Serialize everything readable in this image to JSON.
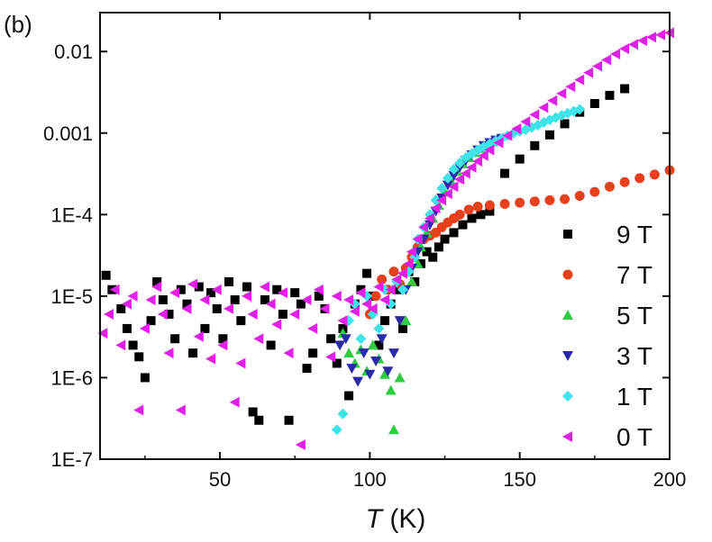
{
  "chart_data": {
    "type": "scatter",
    "panel_label": "(b)",
    "xlabel_var": "T",
    "xlabel_unit": " (K)",
    "ylabel": "",
    "xlim": [
      10,
      200
    ],
    "ylim": [
      1e-07,
      0.03
    ],
    "y_scale": "log",
    "grid": false,
    "legend_position": "right",
    "x_ticks": [
      50,
      100,
      150,
      200
    ],
    "x_tick_labels": [
      "50",
      "100",
      "150",
      "200"
    ],
    "y_ticks": [
      1e-07,
      1e-06,
      1e-05,
      0.0001,
      0.001,
      0.01
    ],
    "y_tick_labels": [
      "1E-7",
      "1E-6",
      "1E-5",
      "1E-4",
      "0.001",
      "0.01"
    ],
    "series": [
      {
        "name": "9 T",
        "marker": "square",
        "color": "#000000",
        "points": [
          [
            12,
            1.8e-05
          ],
          [
            14,
            1.2e-05
          ],
          [
            17,
            7e-06
          ],
          [
            19,
            4e-06
          ],
          [
            21,
            2.5e-06
          ],
          [
            23,
            1.8e-06
          ],
          [
            25,
            1e-06
          ],
          [
            27,
            5e-06
          ],
          [
            29,
            1.5e-05
          ],
          [
            31,
            9e-06
          ],
          [
            33,
            6e-06
          ],
          [
            35,
            3e-06
          ],
          [
            37,
            1.2e-05
          ],
          [
            39,
            8e-06
          ],
          [
            41,
            2e-06
          ],
          [
            43,
            1.3e-05
          ],
          [
            45,
            4e-06
          ],
          [
            47,
            1.1e-05
          ],
          [
            49,
            7e-06
          ],
          [
            51,
            3e-06
          ],
          [
            53,
            1.5e-05
          ],
          [
            55,
            9e-06
          ],
          [
            57,
            5e-06
          ],
          [
            59,
            1.3e-05
          ],
          [
            61,
            3.8e-07
          ],
          [
            63,
            3e-07
          ],
          [
            65,
            9e-06
          ],
          [
            67,
            2.5e-06
          ],
          [
            69,
            1.2e-05
          ],
          [
            71,
            6e-06
          ],
          [
            73,
            3e-07
          ],
          [
            75,
            1.1e-05
          ],
          [
            77,
            8e-06
          ],
          [
            79,
            1.3e-06
          ],
          [
            81,
            2e-06
          ],
          [
            83,
            1e-05
          ],
          [
            85,
            7e-06
          ],
          [
            87,
            3e-06
          ],
          [
            89,
            1.5e-06
          ],
          [
            91,
            4e-06
          ],
          [
            93,
            6e-07
          ],
          [
            95,
            8e-06
          ],
          [
            97,
            1.2e-05
          ],
          [
            99,
            1.9e-05
          ],
          [
            101,
            1e-05
          ],
          [
            103,
            2.5e-06
          ],
          [
            105,
            5e-06
          ],
          [
            107,
            8e-06
          ],
          [
            109,
            1.2e-05
          ],
          [
            111,
            4e-06
          ],
          [
            113,
            2e-05
          ],
          [
            115,
            1.5e-05
          ],
          [
            117,
            2.5e-05
          ],
          [
            119,
            3.5e-05
          ],
          [
            121,
            3e-05
          ],
          [
            123,
            4e-05
          ],
          [
            125,
            5e-05
          ],
          [
            128,
            6e-05
          ],
          [
            131,
            7.5e-05
          ],
          [
            134,
            9e-05
          ],
          [
            137,
            0.0001
          ],
          [
            140,
            0.00011
          ],
          [
            145,
            0.00032
          ],
          [
            150,
            0.00048
          ],
          [
            155,
            0.0007
          ],
          [
            160,
            0.00095
          ],
          [
            165,
            0.0013
          ],
          [
            170,
            0.0018
          ],
          [
            175,
            0.0023
          ],
          [
            180,
            0.0029
          ],
          [
            185,
            0.0035
          ]
        ]
      },
      {
        "name": "7 T",
        "marker": "circle",
        "color": "#e8401c",
        "points": [
          [
            100,
            6e-06
          ],
          [
            102,
            1e-05
          ],
          [
            104,
            1.6e-05
          ],
          [
            106,
            1.2e-05
          ],
          [
            108,
            2e-05
          ],
          [
            110,
            1.4e-05
          ],
          [
            112,
            2.2e-05
          ],
          [
            114,
            3e-05
          ],
          [
            116,
            4e-05
          ],
          [
            118,
            5e-05
          ],
          [
            120,
            5.5e-05
          ],
          [
            122,
            6e-05
          ],
          [
            124,
            7e-05
          ],
          [
            126,
            8e-05
          ],
          [
            128,
            9e-05
          ],
          [
            130,
            0.0001
          ],
          [
            133,
            0.000115
          ],
          [
            136,
            0.000125
          ],
          [
            140,
            0.00013
          ],
          [
            145,
            0.000135
          ],
          [
            150,
            0.00014
          ],
          [
            155,
            0.000145
          ],
          [
            160,
            0.00015
          ],
          [
            165,
            0.000155
          ],
          [
            170,
            0.00017
          ],
          [
            175,
            0.00019
          ],
          [
            180,
            0.00022
          ],
          [
            185,
            0.00025
          ],
          [
            190,
            0.00028
          ],
          [
            195,
            0.00031
          ],
          [
            200,
            0.00035
          ]
        ]
      },
      {
        "name": "5 T",
        "marker": "triangle-up",
        "color": "#2ecc40",
        "points": [
          [
            91,
            3.5e-06
          ],
          [
            93,
            2e-06
          ],
          [
            95,
            1.5e-06
          ],
          [
            97,
            2.2e-06
          ],
          [
            99,
            1.2e-06
          ],
          [
            101,
            2.5e-06
          ],
          [
            103,
            1.7e-06
          ],
          [
            105,
            1.1e-06
          ],
          [
            107,
            7e-07
          ],
          [
            108,
            2.3e-07
          ],
          [
            110,
            1e-06
          ],
          [
            112,
            5e-06
          ],
          [
            114,
            1.5e-05
          ],
          [
            116,
            2.5e-05
          ],
          [
            117,
            4e-05
          ],
          [
            119,
            6e-05
          ],
          [
            121,
            9e-05
          ],
          [
            123,
            0.00013
          ],
          [
            125,
            0.00019
          ],
          [
            127,
            0.00026
          ],
          [
            129,
            0.00034
          ],
          [
            131,
            0.00042
          ],
          [
            133,
            0.0005
          ],
          [
            135,
            0.00058
          ],
          [
            137,
            0.00065
          ],
          [
            139,
            0.00072
          ],
          [
            141,
            0.00078
          ],
          [
            143,
            0.00083
          ]
        ]
      },
      {
        "name": "3 T",
        "marker": "triangle-down",
        "color": "#2a2aa8",
        "points": [
          [
            90,
            2.5e-06
          ],
          [
            92,
            3e-06
          ],
          [
            94,
            1.3e-06
          ],
          [
            96,
            9e-07
          ],
          [
            98,
            2e-06
          ],
          [
            100,
            1.1e-06
          ],
          [
            102,
            1.6e-06
          ],
          [
            104,
            3e-06
          ],
          [
            106,
            1.2e-06
          ],
          [
            108,
            2e-06
          ],
          [
            110,
            5e-06
          ],
          [
            112,
            1.2e-05
          ],
          [
            114,
            2.2e-05
          ],
          [
            116,
            3.5e-05
          ],
          [
            118,
            5e-05
          ],
          [
            120,
            7.5e-05
          ],
          [
            122,
            0.00011
          ],
          [
            124,
            0.00016
          ],
          [
            126,
            0.00023
          ],
          [
            128,
            0.0003
          ],
          [
            130,
            0.00038
          ],
          [
            132,
            0.00046
          ],
          [
            134,
            0.00054
          ],
          [
            136,
            0.00062
          ],
          [
            138,
            0.0007
          ],
          [
            140,
            0.00076
          ],
          [
            142,
            0.00082
          ],
          [
            144,
            0.00086
          ]
        ]
      },
      {
        "name": "1 T",
        "marker": "diamond",
        "color": "#3fe3ea",
        "points": [
          [
            89,
            2.3e-07
          ],
          [
            91,
            3.6e-07
          ],
          [
            93,
            5e-06
          ],
          [
            95,
            8e-06
          ],
          [
            97,
            3e-06
          ],
          [
            99,
            1e-05
          ],
          [
            101,
            6e-06
          ],
          [
            103,
            4e-06
          ],
          [
            105,
            1.2e-05
          ],
          [
            107,
            8e-06
          ],
          [
            109,
            1.5e-05
          ],
          [
            111,
            1.2e-05
          ],
          [
            113,
            2e-05
          ],
          [
            115,
            3e-05
          ],
          [
            116,
            5e-05
          ],
          [
            118,
            7e-05
          ],
          [
            120,
            0.0001
          ],
          [
            122,
            0.00015
          ],
          [
            124,
            0.00021
          ],
          [
            126,
            0.00028
          ],
          [
            128,
            0.00036
          ],
          [
            130,
            0.00043
          ],
          [
            132,
            0.0005
          ],
          [
            134,
            0.00056
          ],
          [
            136,
            0.00062
          ],
          [
            138,
            0.00068
          ],
          [
            140,
            0.00074
          ],
          [
            142,
            0.0008
          ],
          [
            144,
            0.00086
          ],
          [
            146,
            0.00093
          ],
          [
            148,
            0.001
          ],
          [
            150,
            0.00105
          ],
          [
            152,
            0.0011
          ],
          [
            154,
            0.00117
          ],
          [
            156,
            0.00125
          ],
          [
            158,
            0.00135
          ],
          [
            160,
            0.00145
          ],
          [
            162,
            0.00155
          ],
          [
            164,
            0.00165
          ],
          [
            166,
            0.00175
          ],
          [
            168,
            0.00185
          ],
          [
            170,
            0.00195
          ]
        ]
      },
      {
        "name": "0 T",
        "marker": "triangle-left",
        "color": "#e020e8",
        "points": [
          [
            11,
            3.5e-06
          ],
          [
            13,
            6e-06
          ],
          [
            15,
            1.2e-05
          ],
          [
            17,
            2.5e-06
          ],
          [
            19,
            8e-06
          ],
          [
            21,
            1e-05
          ],
          [
            23,
            4e-07
          ],
          [
            25,
            4e-06
          ],
          [
            27,
            9e-06
          ],
          [
            29,
            1.3e-05
          ],
          [
            31,
            6e-06
          ],
          [
            33,
            2e-06
          ],
          [
            35,
            1.1e-05
          ],
          [
            37,
            4e-07
          ],
          [
            39,
            7e-06
          ],
          [
            41,
            1.4e-05
          ],
          [
            43,
            3.2e-06
          ],
          [
            45,
            9e-06
          ],
          [
            47,
            1.7e-06
          ],
          [
            49,
            1.2e-05
          ],
          [
            51,
            2.5e-06
          ],
          [
            53,
            7e-06
          ],
          [
            55,
            5e-07
          ],
          [
            57,
            1.5e-06
          ],
          [
            59,
            1e-05
          ],
          [
            61,
            6e-06
          ],
          [
            63,
            3e-06
          ],
          [
            65,
            1.3e-05
          ],
          [
            67,
            8e-06
          ],
          [
            69,
            4.5e-06
          ],
          [
            71,
            1.1e-05
          ],
          [
            73,
            2e-06
          ],
          [
            75,
            6e-06
          ],
          [
            77,
            1.5e-07
          ],
          [
            79,
            9e-06
          ],
          [
            81,
            4e-06
          ],
          [
            83,
            1.2e-05
          ],
          [
            85,
            7e-06
          ],
          [
            87,
            1.8e-06
          ],
          [
            89,
            1e-05
          ],
          [
            91,
            5e-06
          ],
          [
            93,
            9e-06
          ],
          [
            95,
            6.5e-06
          ],
          [
            97,
            1.1e-05
          ],
          [
            99,
            8e-06
          ],
          [
            101,
            7e-06
          ],
          [
            103,
            1.3e-05
          ],
          [
            105,
            9e-06
          ],
          [
            107,
            1.2e-05
          ],
          [
            109,
            1.6e-05
          ],
          [
            111,
            1.9e-05
          ],
          [
            113,
            2.5e-05
          ],
          [
            114,
            3.5e-05
          ],
          [
            116,
            5e-05
          ],
          [
            118,
            7e-05
          ],
          [
            120,
            9e-05
          ],
          [
            122,
            0.00012
          ],
          [
            124,
            0.00015
          ],
          [
            126,
            0.00018
          ],
          [
            128,
            0.00022
          ],
          [
            130,
            0.00027
          ],
          [
            132,
            0.00032
          ],
          [
            134,
            0.00038
          ],
          [
            136,
            0.00045
          ],
          [
            138,
            0.00053
          ],
          [
            140,
            0.00062
          ],
          [
            143,
            0.00076
          ],
          [
            146,
            0.00093
          ],
          [
            149,
            0.00113
          ],
          [
            152,
            0.00138
          ],
          [
            155,
            0.00168
          ],
          [
            158,
            0.00205
          ],
          [
            161,
            0.0025
          ],
          [
            164,
            0.00305
          ],
          [
            167,
            0.0037
          ],
          [
            170,
            0.0045
          ],
          [
            173,
            0.0055
          ],
          [
            176,
            0.0066
          ],
          [
            179,
            0.0079
          ],
          [
            182,
            0.0093
          ],
          [
            185,
            0.0108
          ],
          [
            188,
            0.0122
          ],
          [
            191,
            0.0136
          ],
          [
            194,
            0.015
          ],
          [
            197,
            0.016
          ],
          [
            200,
            0.017
          ]
        ]
      }
    ]
  }
}
